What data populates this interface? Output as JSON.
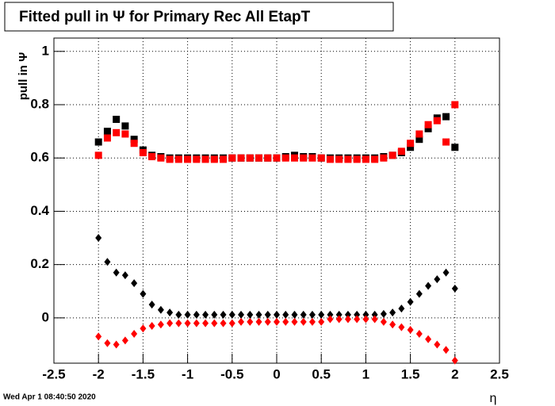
{
  "chart_data": {
    "type": "scatter",
    "title": "Fitted pull in  Ψ  for Primary Rec All EtapT",
    "y_label": "pull in  Ψ",
    "x_label": "η",
    "footer": "Wed Apr  1 08:40:50 2020",
    "x": [
      -2.0,
      -1.9,
      -1.8,
      -1.7,
      -1.6,
      -1.5,
      -1.4,
      -1.3,
      -1.2,
      -1.1,
      -1.0,
      -0.9,
      -0.8,
      -0.7,
      -0.6,
      -0.5,
      -0.4,
      -0.3,
      -0.2,
      -0.1,
      0.0,
      0.1,
      0.2,
      0.3,
      0.4,
      0.5,
      0.6,
      0.7,
      0.8,
      0.9,
      1.0,
      1.1,
      1.2,
      1.3,
      1.4,
      1.5,
      1.6,
      1.7,
      1.8,
      1.9,
      2.0
    ],
    "series": [
      {
        "color": "#000000",
        "marker": "square",
        "values": [
          0.66,
          0.7,
          0.745,
          0.72,
          0.67,
          0.63,
          0.61,
          0.605,
          0.6,
          0.6,
          0.6,
          0.6,
          0.6,
          0.6,
          0.6,
          0.6,
          0.6,
          0.6,
          0.6,
          0.6,
          0.6,
          0.605,
          0.61,
          0.605,
          0.605,
          0.6,
          0.6,
          0.6,
          0.6,
          0.6,
          0.6,
          0.6,
          0.605,
          0.61,
          0.62,
          0.64,
          0.67,
          0.71,
          0.75,
          0.755,
          0.64
        ]
      },
      {
        "color": "#ff0000",
        "marker": "square",
        "values": [
          0.61,
          0.675,
          0.695,
          0.69,
          0.655,
          0.62,
          0.605,
          0.6,
          0.595,
          0.595,
          0.595,
          0.595,
          0.595,
          0.595,
          0.595,
          0.6,
          0.6,
          0.6,
          0.6,
          0.6,
          0.6,
          0.6,
          0.6,
          0.6,
          0.6,
          0.6,
          0.595,
          0.595,
          0.595,
          0.595,
          0.595,
          0.595,
          0.6,
          0.61,
          0.625,
          0.655,
          0.69,
          0.725,
          0.74,
          0.66,
          0.8
        ]
      },
      {
        "color": "#000000",
        "marker": "diamond",
        "values": [
          0.3,
          0.21,
          0.17,
          0.16,
          0.13,
          0.09,
          0.05,
          0.03,
          0.02,
          0.012,
          0.012,
          0.012,
          0.012,
          0.012,
          0.012,
          0.012,
          0.012,
          0.012,
          0.012,
          0.012,
          0.012,
          0.012,
          0.012,
          0.012,
          0.012,
          0.012,
          0.012,
          0.012,
          0.012,
          0.012,
          0.012,
          0.012,
          0.015,
          0.02,
          0.035,
          0.06,
          0.09,
          0.12,
          0.145,
          0.17,
          0.11
        ]
      },
      {
        "color": "#ff0000",
        "marker": "diamond",
        "values": [
          -0.07,
          -0.095,
          -0.1,
          -0.085,
          -0.06,
          -0.04,
          -0.03,
          -0.025,
          -0.02,
          -0.02,
          -0.02,
          -0.02,
          -0.02,
          -0.02,
          -0.02,
          -0.02,
          -0.015,
          -0.015,
          -0.015,
          -0.015,
          -0.015,
          -0.015,
          -0.015,
          -0.015,
          -0.015,
          -0.015,
          -0.005,
          -0.005,
          -0.005,
          -0.005,
          -0.005,
          -0.005,
          -0.015,
          -0.025,
          -0.035,
          -0.045,
          -0.06,
          -0.08,
          -0.1,
          -0.12,
          -0.16
        ]
      }
    ],
    "xlim": [
      -2.5,
      2.5
    ],
    "xticks": [
      -2.5,
      -2,
      -1.5,
      -1,
      -0.5,
      0,
      0.5,
      1,
      1.5,
      2,
      2.5
    ],
    "ylim": [
      -0.17,
      1.05
    ],
    "yticks": [
      0,
      0.2,
      0.4,
      0.6,
      0.8,
      1
    ],
    "grid": true
  }
}
